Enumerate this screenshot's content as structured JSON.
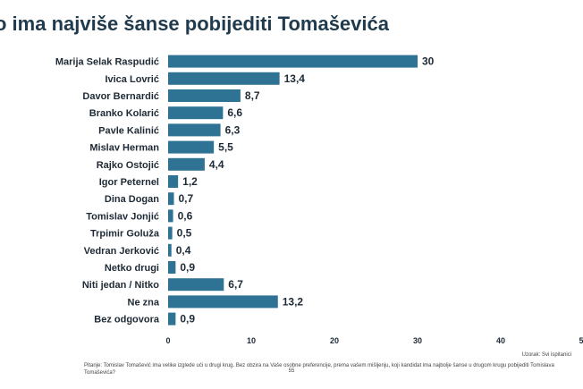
{
  "title": "o ima najviše šanse pobijediti Tomaševića",
  "sample_note": "Uzorak: Svi ispitanici",
  "footnote": "Pitanje: Tomislav Tomašević ima velike izglede ući u drugi krug. Bez obzira na Vaše osobne preferencije, prema vašem mišljenju, koji kandidat ima najbolje šanse u drugom krugu pobijediti Tomislava Tomaševića?",
  "footnote_sub": "55",
  "colors": {
    "bar": "#2f7394",
    "title": "#1f3a4d",
    "text": "#1e2a35"
  },
  "chart_data": {
    "type": "bar",
    "orientation": "horizontal",
    "categories": [
      "Marija Selak Raspudić",
      "Ivica Lovrić",
      "Davor Bernardić",
      "Branko Kolarić",
      "Pavle Kalinić",
      "Mislav Herman",
      "Rajko Ostojić",
      "Igor Peternel",
      "Dina Dogan",
      "Tomislav Jonjić",
      "Trpimir Goluža",
      "Vedran Jerković",
      "Netko drugi",
      "Niti jedan / Nitko",
      "Ne zna",
      "Bez odgovora"
    ],
    "values": [
      30,
      13.4,
      8.7,
      6.6,
      6.3,
      5.5,
      4.4,
      1.2,
      0.7,
      0.6,
      0.5,
      0.4,
      0.9,
      6.7,
      13.2,
      0.9
    ],
    "value_labels": [
      "30",
      "13,4",
      "8,7",
      "6,6",
      "6,3",
      "5,5",
      "4,4",
      "1,2",
      "0,7",
      "0,6",
      "0,5",
      "0,4",
      "0,9",
      "6,7",
      "13,2",
      "0,9"
    ],
    "xticks": [
      "0",
      "10",
      "20",
      "30",
      "40",
      "5"
    ],
    "xlim": [
      0,
      50
    ],
    "grid": false,
    "title": "o ima najviše šanse pobijediti Tomaševića"
  }
}
